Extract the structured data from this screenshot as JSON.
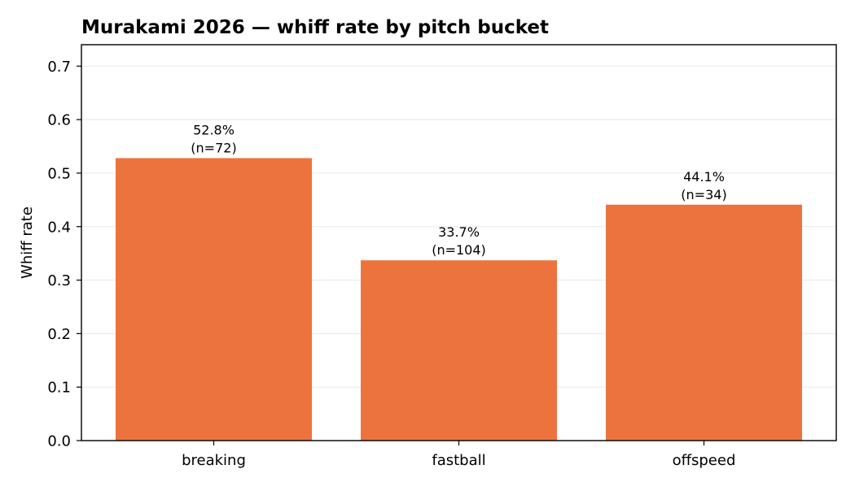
{
  "chart_data": {
    "type": "bar",
    "title": "Murakami 2026 — whiff rate by pitch bucket",
    "xlabel": "",
    "ylabel": "Whiff rate",
    "categories": [
      "breaking",
      "fastball",
      "offspeed"
    ],
    "values": [
      0.528,
      0.337,
      0.441
    ],
    "data_labels": [
      [
        "52.8%",
        "(n=72)"
      ],
      [
        "33.7%",
        "(n=104)"
      ],
      [
        "44.1%",
        "(n=34)"
      ]
    ],
    "ylim": [
      0,
      0.74
    ],
    "yticks": [
      0.0,
      0.1,
      0.2,
      0.3,
      0.4,
      0.5,
      0.6,
      0.7
    ],
    "ytick_labels": [
      "0.0",
      "0.1",
      "0.2",
      "0.3",
      "0.4",
      "0.5",
      "0.6",
      "0.7"
    ],
    "grid": "horizontal",
    "legend": "none",
    "colors": {
      "bar": "#ED733E",
      "grid": "#EBEBEB",
      "axis": "#000000"
    }
  }
}
